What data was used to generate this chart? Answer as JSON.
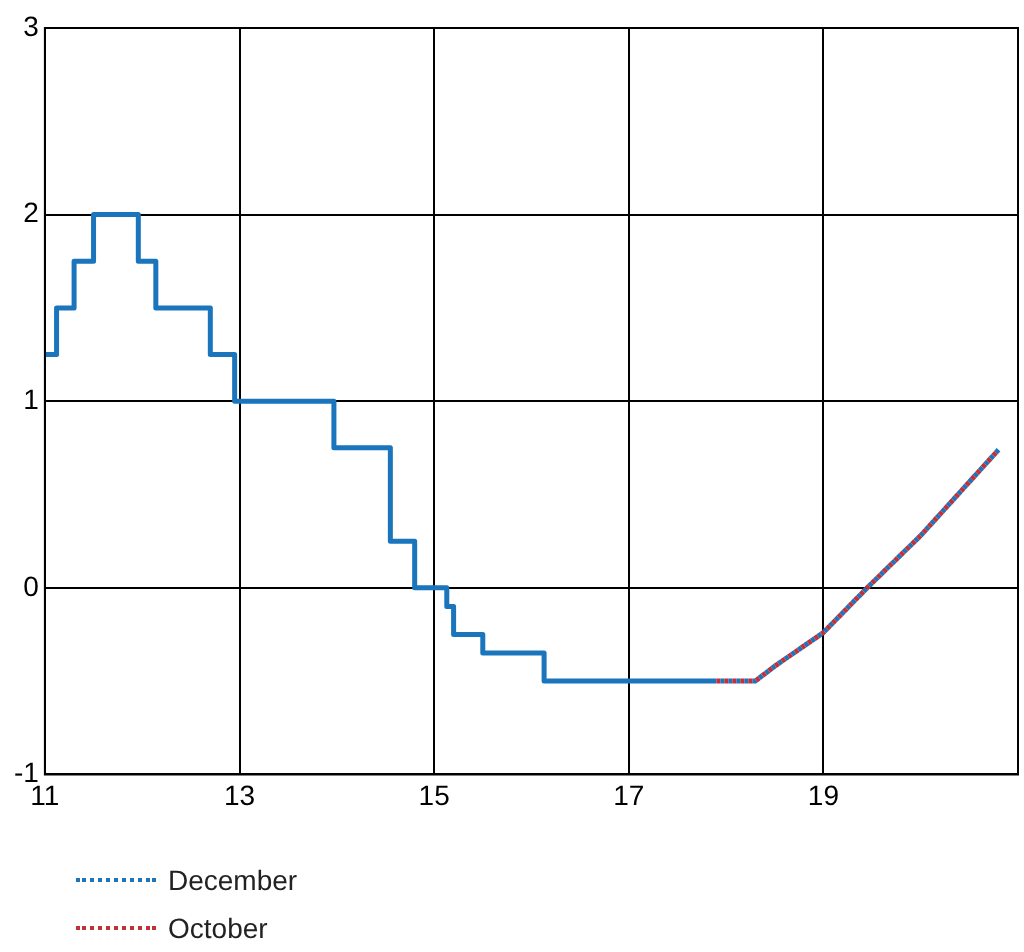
{
  "chart_data": {
    "type": "step",
    "xlim": [
      11,
      21
    ],
    "xticks": [
      11,
      13,
      15,
      17,
      19
    ],
    "ylim": [
      -1,
      3
    ],
    "yticks": [
      -1,
      0,
      1,
      2,
      3
    ],
    "grid": true,
    "legend": "bottom left",
    "series": [
      {
        "color": "#1a75bc",
        "x": [
          11,
          11.12,
          11.3,
          11.5,
          11.96,
          12.14,
          12.7,
          12.95,
          13.97,
          14.55,
          14.8,
          15.13,
          15.2,
          15.5,
          16.13,
          17.9
        ],
        "values": [
          1.25,
          1.5,
          1.75,
          2,
          1.75,
          1.5,
          1.25,
          1,
          0.75,
          0.25,
          0,
          -0.1,
          -0.25,
          -0.35,
          -0.5,
          -0.5
        ]
      },
      {
        "type": "line",
        "name": "December",
        "color": "#1a75bc",
        "line_style": "dotted",
        "x": [
          17.9,
          18.3,
          18.5,
          19,
          19.45,
          20,
          20.8
        ],
        "values": [
          -0.5,
          -0.5,
          -0.42,
          -0.24,
          0,
          0.28,
          0.74
        ]
      },
      {
        "type": "line",
        "name": "October",
        "color": "#c0313b",
        "line_style": "dotted",
        "x": [
          17.9,
          18.3,
          18.5,
          19,
          19.45,
          20,
          20.8
        ],
        "values": [
          -0.5,
          -0.5,
          -0.42,
          -0.24,
          0,
          0.28,
          0.74
        ]
      }
    ]
  }
}
